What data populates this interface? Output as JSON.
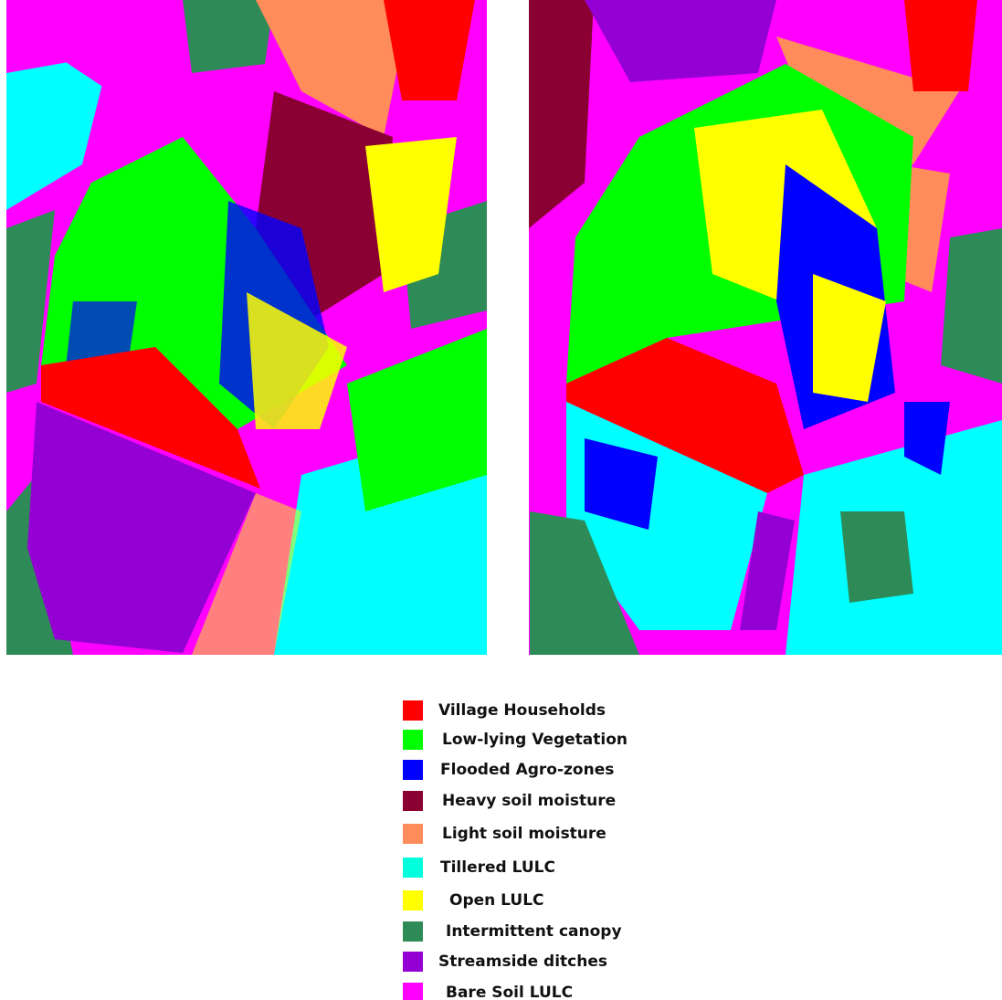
{
  "legend": {
    "items": [
      {
        "label": "Village Households",
        "color": "#ff0000"
      },
      {
        "label": "Low-lying Vegetation",
        "color": "#00ff00"
      },
      {
        "label": "Flooded Agro-zones",
        "color": "#0000ff"
      },
      {
        "label": "Heavy soil moisture",
        "color": "#8b0033"
      },
      {
        "label": "Light soil moisture",
        "color": "#ff8c5a"
      },
      {
        "label": "Tillered LULC",
        "color": "#00ffdd"
      },
      {
        "label": "Open LULC",
        "color": "#ffff00"
      },
      {
        "label": "Intermittent canopy",
        "color": "#2e8b57"
      },
      {
        "label": "Streamside ditches",
        "color": "#9400d3"
      },
      {
        "label": "Bare Soil LULC",
        "color": "#ff00ff"
      }
    ]
  }
}
